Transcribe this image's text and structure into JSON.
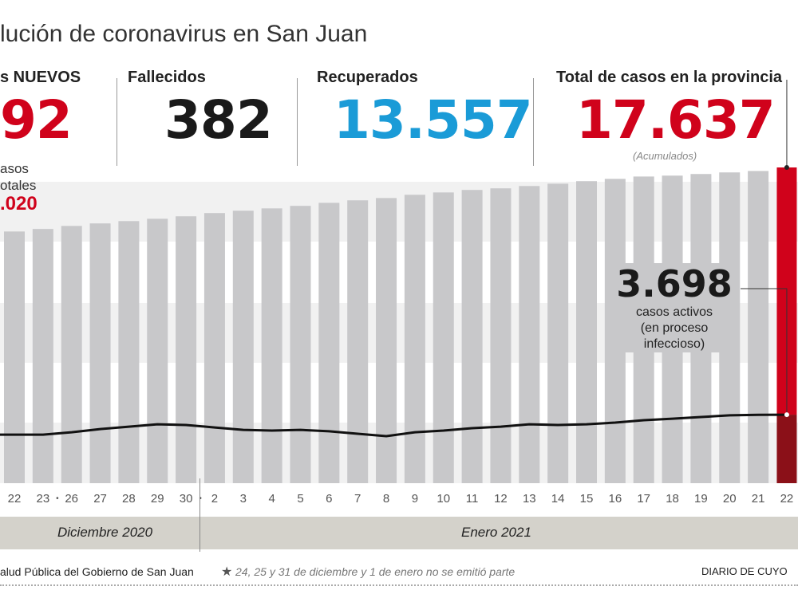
{
  "title": "lución de coronavirus en San Juan",
  "stats": {
    "nuevos_label": "s NUEVOS",
    "nuevos_value": "92",
    "totales_line1": "asos",
    "totales_line2": "otales",
    "totales_value": ".020",
    "fallecidos_label": "Fallecidos",
    "fallecidos_value": "382",
    "recuperados_label": "Recuperados",
    "recuperados_value": "13.557",
    "total_label": "Total de casos en la provincia",
    "total_value": "17.637",
    "total_note": "(Acumulados)"
  },
  "annotation": {
    "value": "3.698",
    "line1": "casos activos",
    "line2": "(en proceso",
    "line3": "infeccioso)"
  },
  "months": {
    "dec": "Diciembre 2020",
    "jan": "Enero 2021"
  },
  "footer": {
    "source": "alud Pública del Gobierno de San Juan",
    "note_star": "★",
    "note": "24, 25 y 31 de diciembre y 1 de enero no se emitió parte",
    "brand": "DIARIO DE CUYO"
  },
  "colors": {
    "red": "#d0021b",
    "dark_red": "#8b1018",
    "blue": "#1a9bd7",
    "bar_gray": "#c8c8ca",
    "line": "#111111"
  },
  "chart_data": {
    "type": "bar",
    "categories": [
      "22",
      "23",
      "26",
      "27",
      "28",
      "29",
      "30",
      "2",
      "3",
      "4",
      "5",
      "6",
      "7",
      "8",
      "9",
      "10",
      "11",
      "12",
      "13",
      "14",
      "15",
      "16",
      "17",
      "18",
      "19",
      "20",
      "21",
      "22"
    ],
    "gap_markers_after": [
      "23",
      "30"
    ],
    "series": [
      {
        "name": "Total de casos en la provincia",
        "type": "bar",
        "values": [
          14060,
          14200,
          14370,
          14510,
          14640,
          14770,
          14910,
          15090,
          15220,
          15350,
          15490,
          15660,
          15800,
          15930,
          16110,
          16240,
          16380,
          16470,
          16600,
          16730,
          16870,
          17000,
          17130,
          17180,
          17270,
          17360,
          17440,
          17637
        ]
      },
      {
        "name": "casos activos",
        "type": "line",
        "values": [
          2620,
          2620,
          2750,
          2920,
          3050,
          3180,
          3140,
          3010,
          2880,
          2840,
          2880,
          2800,
          2670,
          2540,
          2750,
          2840,
          2970,
          3050,
          3180,
          3140,
          3180,
          3270,
          3400,
          3480,
          3570,
          3660,
          3690,
          3698
        ]
      }
    ],
    "highlight_last": true
  }
}
